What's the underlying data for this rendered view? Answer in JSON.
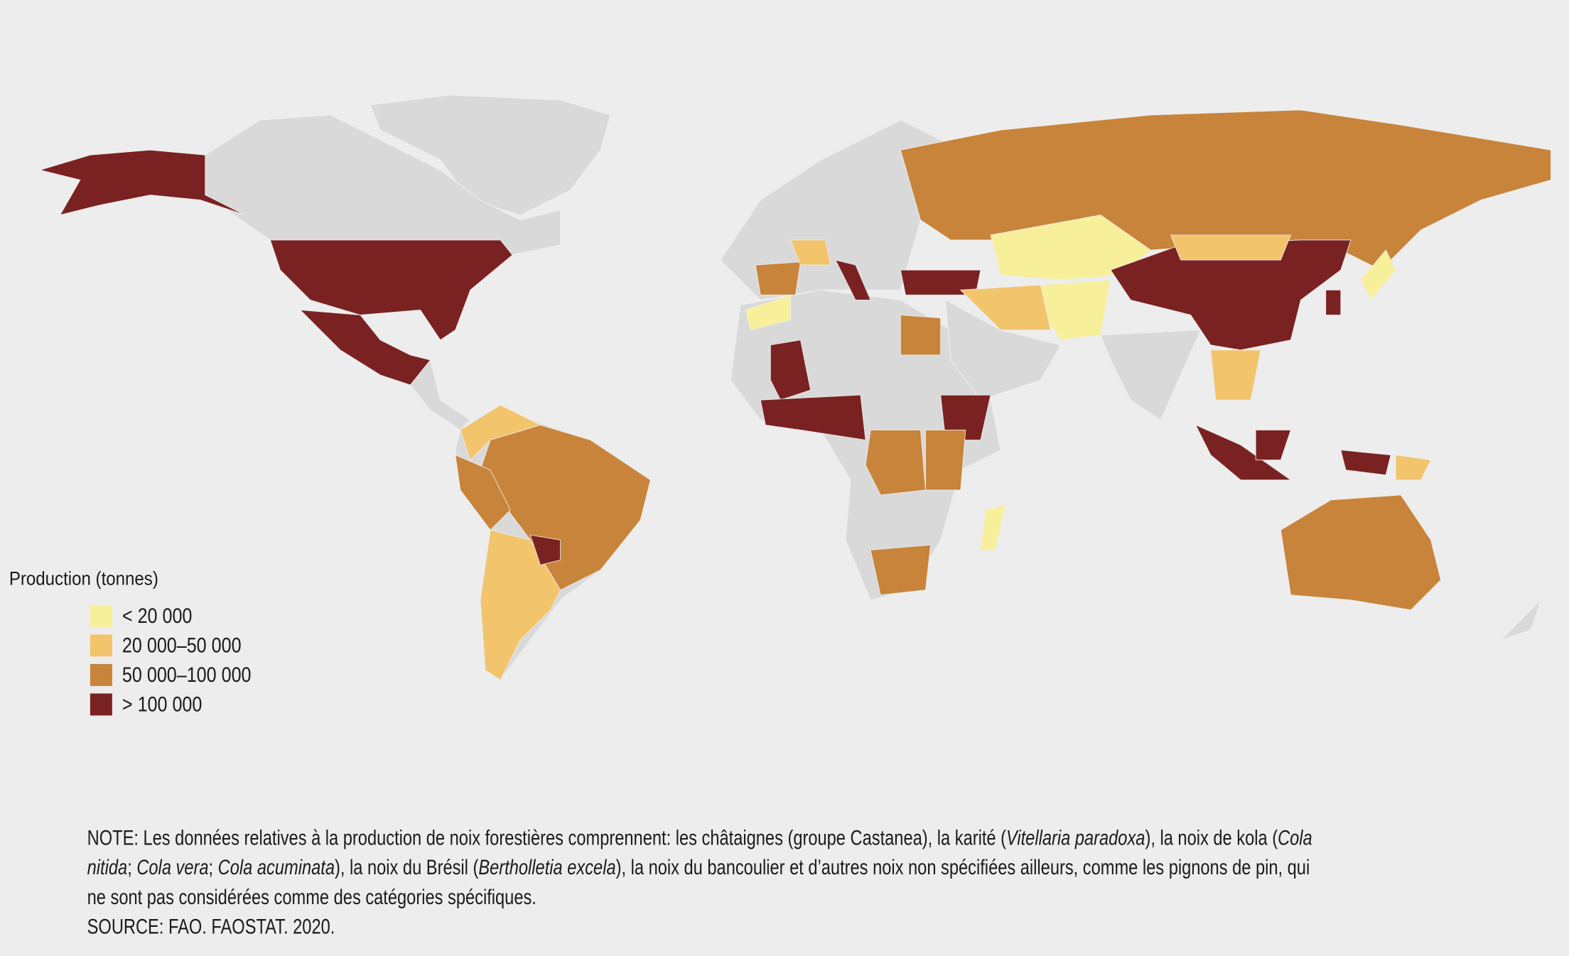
{
  "legend": {
    "title": "Production (tonnes)",
    "items": [
      {
        "label": "< 20 000",
        "color": "#f8ef9b"
      },
      {
        "label": "20 000–50 000",
        "color": "#f2c46c"
      },
      {
        "label": "50 000–100 000",
        "color": "#c8843b"
      },
      {
        "label": "> 100 000",
        "color": "#7a2222"
      }
    ]
  },
  "note": {
    "lines": [
      [
        {
          "text": "NOTE: Les données relatives à la production de noix forestières comprennent: les châtaignes (groupe Castanea), la karité (",
          "italic": false
        },
        {
          "text": "Vitellaria paradoxa",
          "italic": true
        },
        {
          "text": "), la noix de kola (",
          "italic": false
        },
        {
          "text": "Cola",
          "italic": true
        }
      ],
      [
        {
          "text": "nitida",
          "italic": true
        },
        {
          "text": "; ",
          "italic": false
        },
        {
          "text": "Cola vera",
          "italic": true
        },
        {
          "text": "; ",
          "italic": false
        },
        {
          "text": "Cola acuminata",
          "italic": true
        },
        {
          "text": "), la noix du Brésil (",
          "italic": false
        },
        {
          "text": "Bertholletia excela",
          "italic": true
        },
        {
          "text": "), la noix du bancoulier et d’autres noix non spécifiées ailleurs, comme les pignons de pin, qui",
          "italic": false
        }
      ],
      [
        {
          "text": "ne sont pas considérées comme des catégories spécifiques.",
          "italic": false
        }
      ]
    ]
  },
  "source": "SOURCE: FAO. FAOSTAT. 2020."
}
